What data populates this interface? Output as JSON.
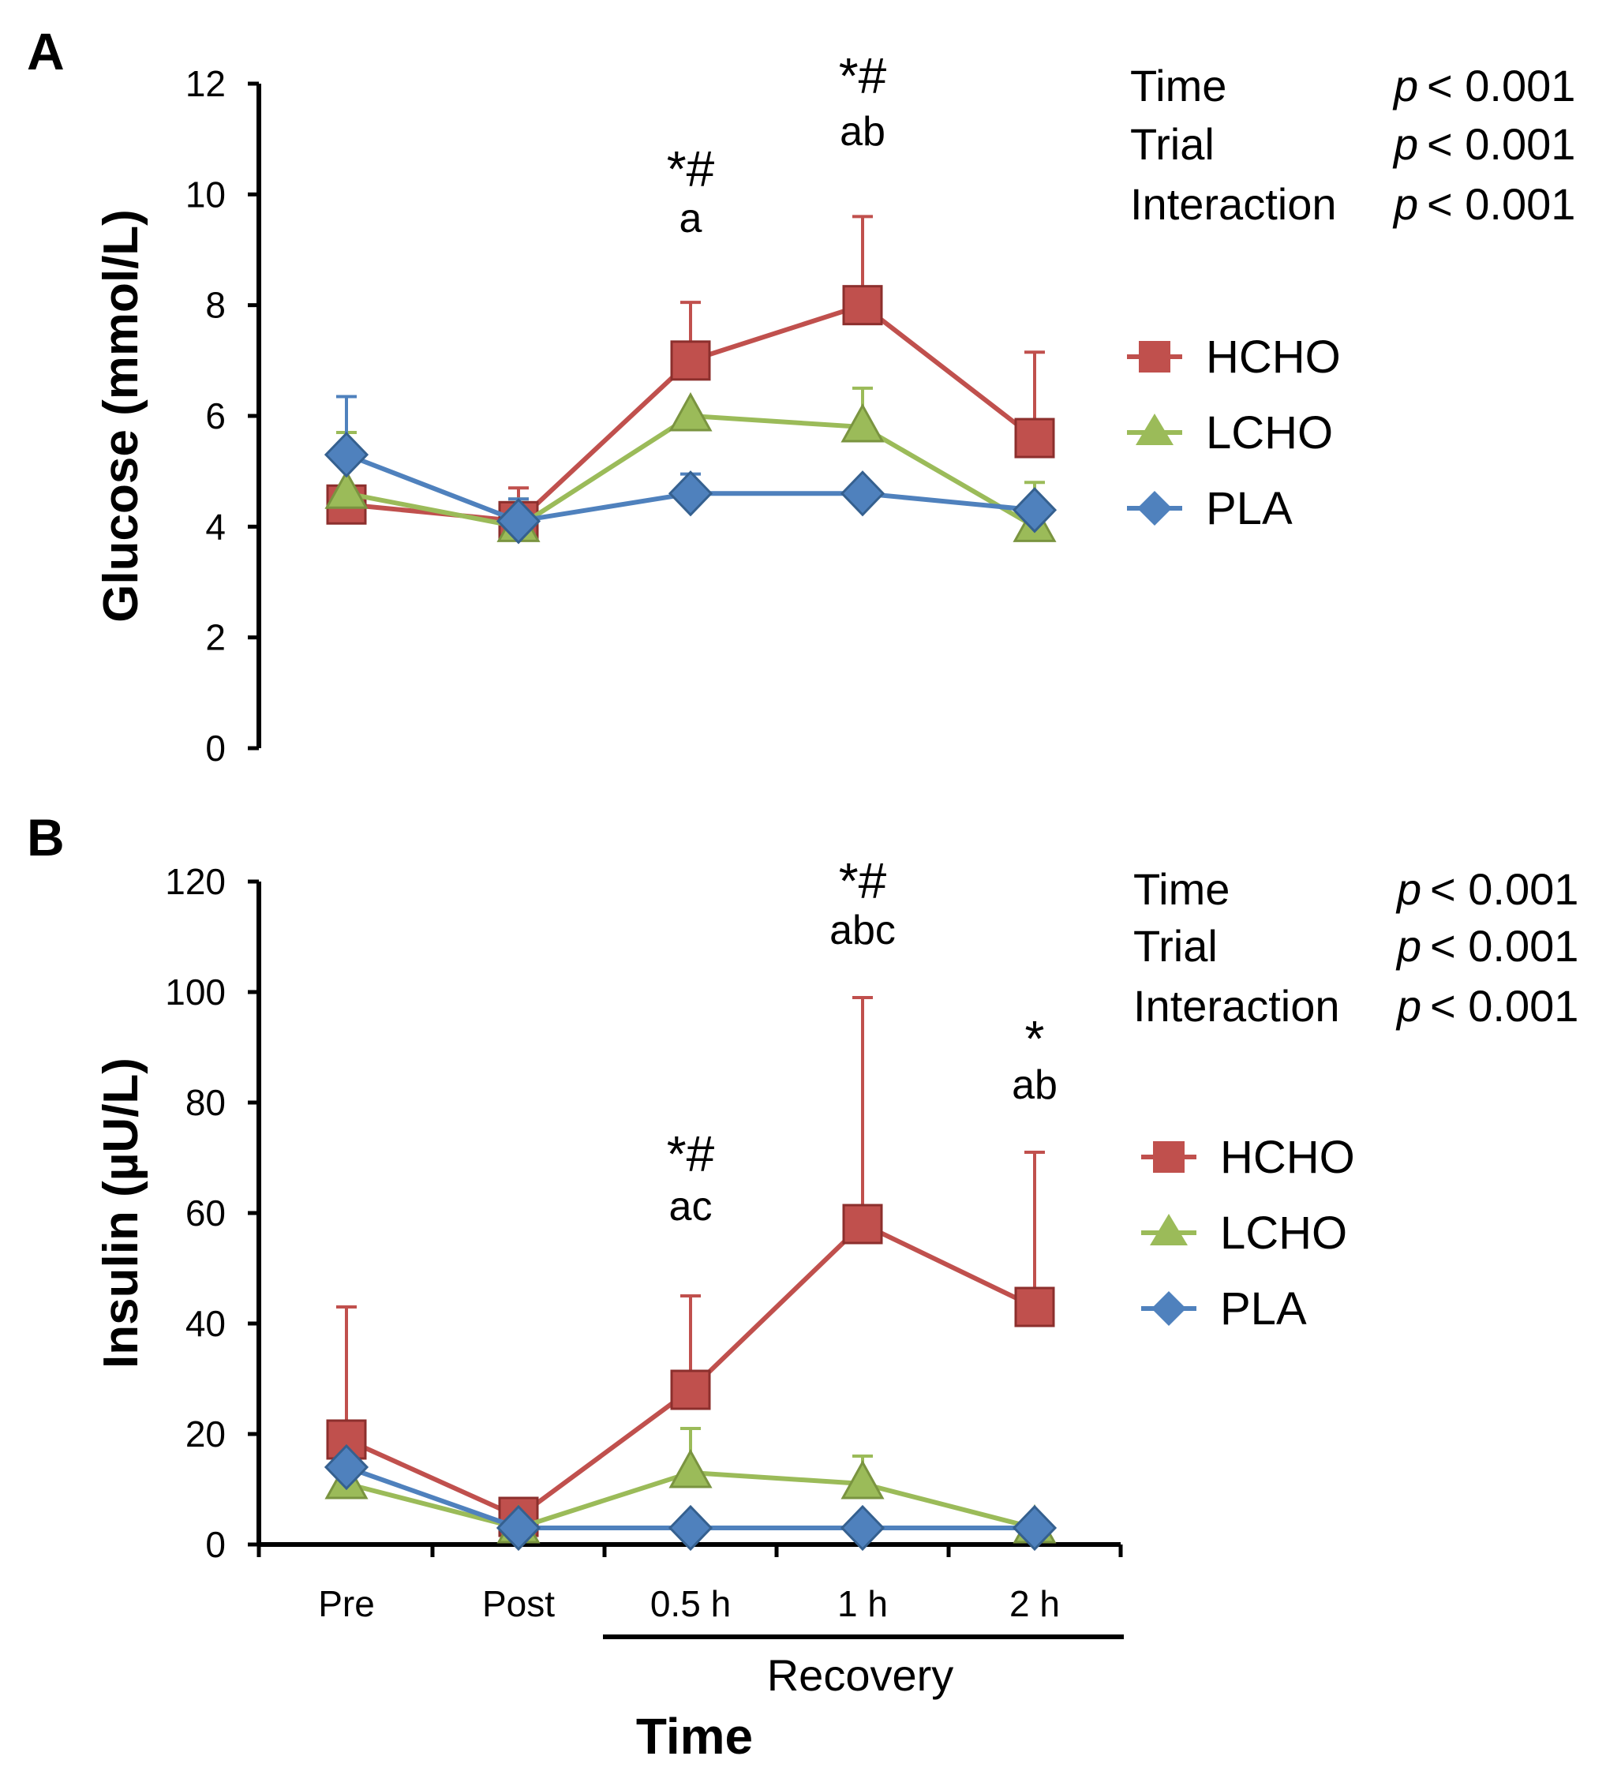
{
  "chart_data": [
    {
      "panel": "A",
      "type": "line",
      "ylabel": "Glucose (mmol/L)",
      "ylim": [
        0,
        12
      ],
      "yticks": [
        0,
        2,
        4,
        6,
        8,
        10,
        12
      ],
      "categories": [
        "Pre",
        "Post",
        "0.5 h",
        "1 h",
        "2 h"
      ],
      "series": [
        {
          "name": "HCHO",
          "color": "#c0504d",
          "marker": "square",
          "values": [
            4.4,
            4.1,
            7.0,
            8.0,
            5.6
          ],
          "error_plus": [
            0.2,
            0.6,
            1.05,
            1.6,
            1.55
          ]
        },
        {
          "name": "LCHO",
          "color": "#9bbb59",
          "marker": "triangle",
          "values": [
            4.6,
            4.0,
            6.0,
            5.8,
            4.0
          ],
          "error_plus": [
            1.1,
            0.5,
            0.0,
            0.7,
            0.8
          ]
        },
        {
          "name": "PLA",
          "color": "#4f81bd",
          "marker": "diamond",
          "values": [
            5.3,
            4.1,
            4.6,
            4.6,
            4.3
          ],
          "error_plus": [
            1.05,
            0.4,
            0.35,
            0.0,
            0.0
          ]
        }
      ],
      "stats": [
        {
          "label": "Time",
          "p": "p",
          "value": "< 0.001"
        },
        {
          "label": "Trial",
          "p": "p",
          "value": "< 0.001"
        },
        {
          "label": "Interaction",
          "p": "p",
          "value": "< 0.001"
        }
      ],
      "annotations": [
        {
          "category": "0.5 h",
          "symbols": "*#",
          "letters": "a"
        },
        {
          "category": "1 h",
          "symbols": "*#",
          "letters": "ab"
        }
      ]
    },
    {
      "panel": "B",
      "type": "line",
      "ylabel": "Insulin (µU/L)",
      "ylim": [
        0,
        120
      ],
      "yticks": [
        0,
        20,
        40,
        60,
        80,
        100,
        120
      ],
      "categories": [
        "Pre",
        "Post",
        "0.5 h",
        "1 h",
        "2 h"
      ],
      "series": [
        {
          "name": "HCHO",
          "color": "#c0504d",
          "marker": "square",
          "values": [
            19,
            5,
            28,
            58,
            43
          ],
          "error_plus": [
            24,
            2,
            17,
            41,
            28
          ]
        },
        {
          "name": "LCHO",
          "color": "#9bbb59",
          "marker": "triangle",
          "values": [
            11,
            3,
            13,
            11,
            3
          ],
          "error_plus": [
            0,
            0,
            8,
            5,
            0
          ]
        },
        {
          "name": "PLA",
          "color": "#4f81bd",
          "marker": "diamond",
          "values": [
            14,
            3,
            3,
            3,
            3
          ],
          "error_plus": [
            0,
            0,
            0,
            0,
            0
          ]
        }
      ],
      "stats": [
        {
          "label": "Time",
          "p": "p",
          "value": "< 0.001"
        },
        {
          "label": "Trial",
          "p": "p",
          "value": "< 0.001"
        },
        {
          "label": "Interaction",
          "p": "p",
          "value": "< 0.001"
        }
      ],
      "annotations": [
        {
          "category": "0.5 h",
          "symbols": "*#",
          "letters": "ac"
        },
        {
          "category": "1 h",
          "symbols": "*#",
          "letters": "abc"
        },
        {
          "category": "2 h",
          "symbols": "*",
          "letters": "ab"
        }
      ]
    }
  ],
  "xaxis": {
    "recovery_label": "Recovery",
    "title": "Time"
  }
}
